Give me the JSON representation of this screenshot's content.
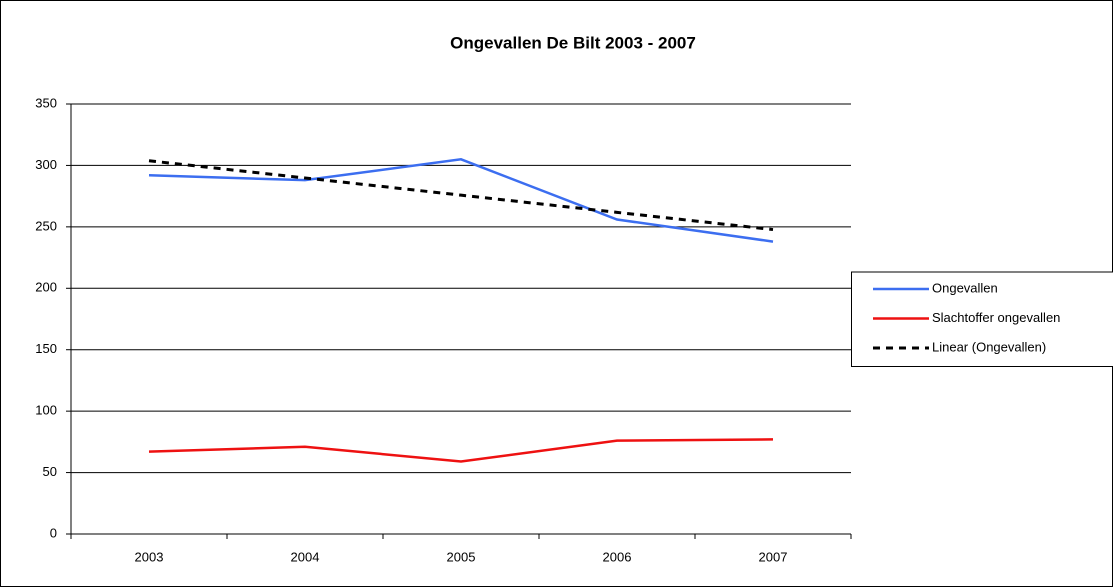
{
  "chart_data": {
    "type": "line",
    "title": "Ongevallen De Bilt 2003 - 2007",
    "categories": [
      "2003",
      "2004",
      "2005",
      "2006",
      "2007"
    ],
    "series": [
      {
        "name": "Ongevallen",
        "color": "#3c6ef0",
        "values": [
          292,
          288,
          305,
          256,
          238
        ]
      },
      {
        "name": "Slachtoffer ongevallen",
        "color": "#ee1111",
        "values": [
          67,
          71,
          59,
          76,
          77
        ]
      },
      {
        "name": "Linear (Ongevallen)",
        "color": "#000000",
        "dashed": true,
        "values": [
          303.8,
          289.8,
          275.8,
          261.8,
          247.8
        ]
      }
    ],
    "ylim": [
      0,
      350
    ],
    "yticks": [
      0,
      50,
      100,
      150,
      200,
      250,
      300,
      350
    ],
    "grid": true,
    "legend": "right"
  }
}
